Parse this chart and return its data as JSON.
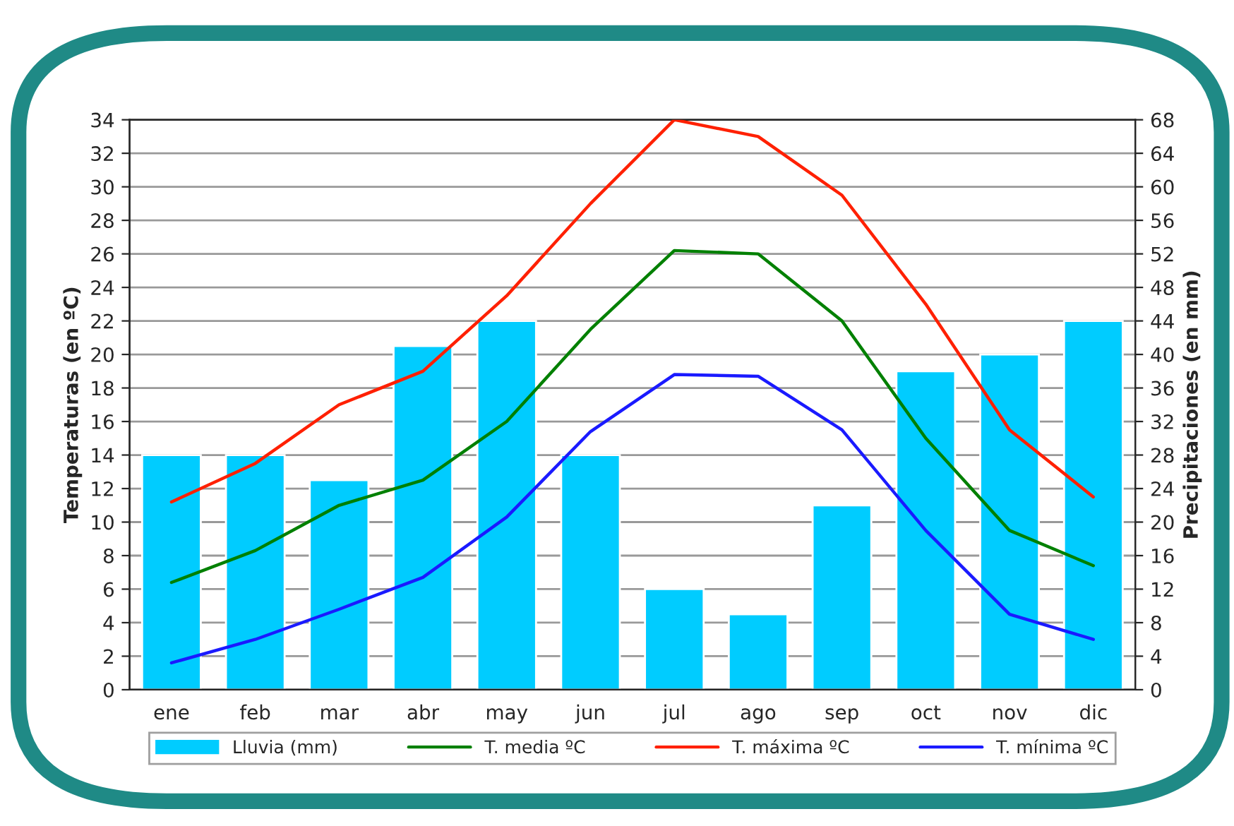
{
  "chart_data": {
    "type": "bar",
    "ylabel": "Temperaturas (en ºC)",
    "y2label": "Precipitaciones (en mm)",
    "categories": [
      "ene",
      "feb",
      "mar",
      "abr",
      "may",
      "jun",
      "jul",
      "ago",
      "sep",
      "oct",
      "nov",
      "dic"
    ],
    "series": [
      {
        "name": "Lluvia (mm)",
        "axis": "y2",
        "color": "#00ccff",
        "values": [
          28,
          28,
          25,
          41,
          44,
          28,
          12,
          9,
          22,
          38,
          40,
          44
        ]
      },
      {
        "name": "T. media ºC",
        "type": "line",
        "color": "#008000",
        "values": [
          6.4,
          8.3,
          11,
          12.5,
          16,
          21.5,
          26.2,
          26,
          22,
          15,
          9.5,
          7.4
        ]
      },
      {
        "name": "T. máxima ºC",
        "type": "line",
        "color": "#ff2000",
        "values": [
          11.2,
          13.5,
          17,
          19,
          23.5,
          29,
          34,
          33,
          29.5,
          23,
          15.5,
          11.5
        ]
      },
      {
        "name": "T. mínima ºC",
        "type": "line",
        "color": "#1a1aff",
        "values": [
          1.6,
          3,
          4.8,
          6.7,
          10.3,
          15.4,
          18.8,
          18.7,
          15.5,
          9.5,
          4.5,
          3
        ]
      }
    ],
    "ylim": [
      0,
      34
    ],
    "yticks": [
      0,
      2,
      4,
      6,
      8,
      10,
      12,
      14,
      16,
      18,
      20,
      22,
      24,
      26,
      28,
      30,
      32,
      34
    ],
    "y2lim": [
      0,
      68
    ],
    "y2ticks": [
      0,
      4,
      8,
      12,
      16,
      20,
      24,
      28,
      32,
      36,
      40,
      44,
      48,
      52,
      56,
      60,
      64,
      68
    ],
    "grid": "y",
    "legend": "bottom",
    "marker": "none",
    "line_style": "solid"
  }
}
